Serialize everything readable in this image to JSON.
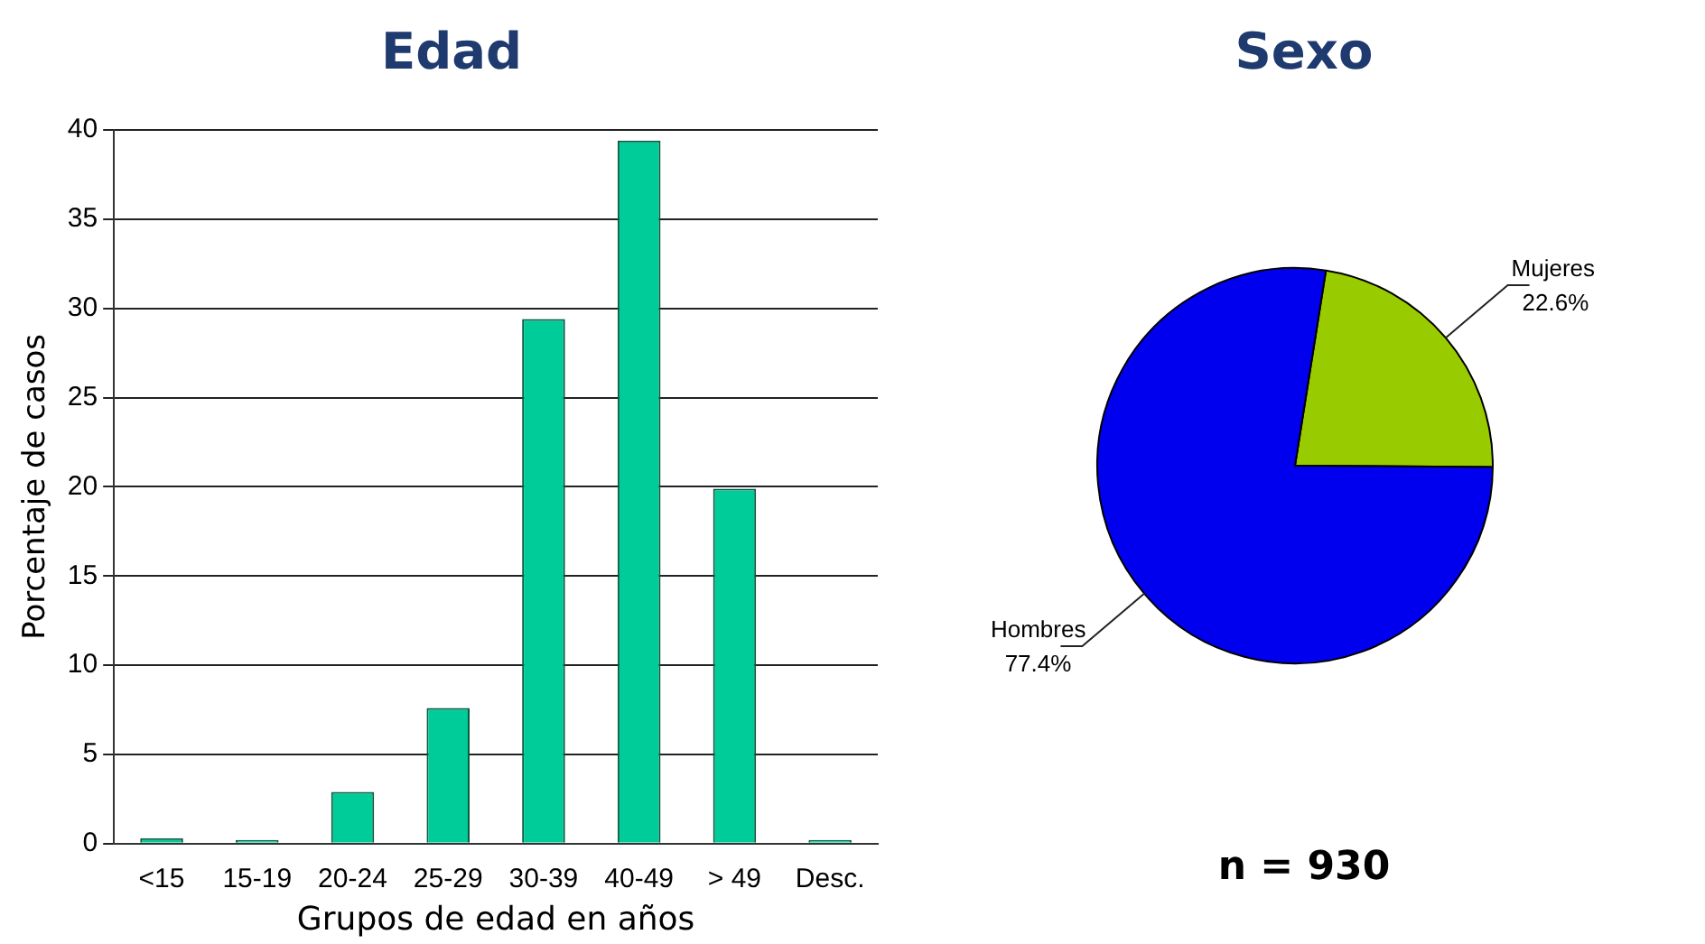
{
  "chart_data": [
    {
      "type": "bar",
      "title": "Edad",
      "xlabel": "Grupos de edad en años",
      "ylabel": "Porcentaje de casos",
      "categories": [
        "<15",
        "15-19",
        "20-24",
        "25-29",
        "30-39",
        "40-49",
        "> 49",
        "Desc."
      ],
      "values": [
        0.3,
        0.2,
        2.9,
        7.6,
        29.4,
        39.4,
        19.9,
        0.2
      ],
      "color": "#00cc99",
      "ylim": [
        0,
        40
      ],
      "yticks": [
        0,
        5,
        10,
        15,
        20,
        25,
        30,
        35,
        40
      ],
      "grid": "y",
      "legend": false
    },
    {
      "type": "pie",
      "title": "Sexo",
      "categories": [
        "Mujeres",
        "Hombres"
      ],
      "values": [
        22.6,
        77.4
      ],
      "colors": [
        "#99cc00",
        "#0000ee"
      ],
      "value_labels": [
        "22.6%",
        "77.4%"
      ],
      "annotations": [
        "n = 930"
      ],
      "legend": false
    }
  ]
}
